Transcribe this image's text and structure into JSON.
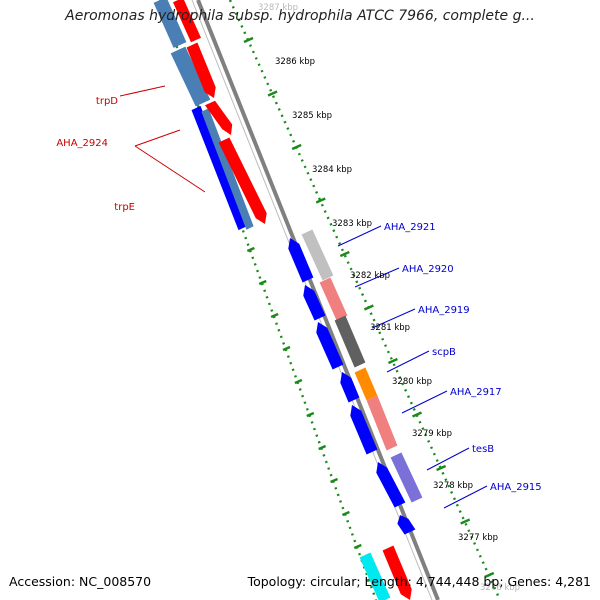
{
  "title": "Aeromonas hydrophila subsp. hydrophila ATCC 7966, complete g...",
  "footer": {
    "accession_label": "Accession:",
    "accession": "NC_008570",
    "topology_label": "Topology:",
    "topology": "circular",
    "length_label": "Length:",
    "length": "4,744,448 bp",
    "genes_label": "Genes:",
    "genes": "4,281"
  },
  "tick_labels": [
    "3287 kbp",
    "3286 kbp",
    "3285 kbp",
    "3284 kbp",
    "3283 kbp",
    "3282 kbp",
    "3281 kbp",
    "3280 kbp",
    "3279 kbp",
    "3278 kbp",
    "3277 kbp",
    "3276 kbp"
  ],
  "gene_labels_left": [
    "trpD",
    "AHA_2924",
    "trpE"
  ],
  "gene_labels_right": [
    "AHA_2921",
    "AHA_2920",
    "AHA_2919",
    "scpB",
    "AHA_2917",
    "tesB",
    "AHA_2915"
  ],
  "colors": {
    "label_red": "#cc0000",
    "label_blue": "#0000cc",
    "tick_green": "#1a8a1a",
    "backbone": "#808080",
    "forward_cds": "#ff0000",
    "reverse_cds": "#0000ff",
    "cds_steelblue": "#4a7fb5",
    "cds_lightgray": "#c0c0c0",
    "cds_pink": "#f08080",
    "cds_darkgray": "#606060",
    "cds_orange": "#ff8c00",
    "cds_purple": "#7a70d8",
    "cds_cyan": "#00e8f0"
  }
}
